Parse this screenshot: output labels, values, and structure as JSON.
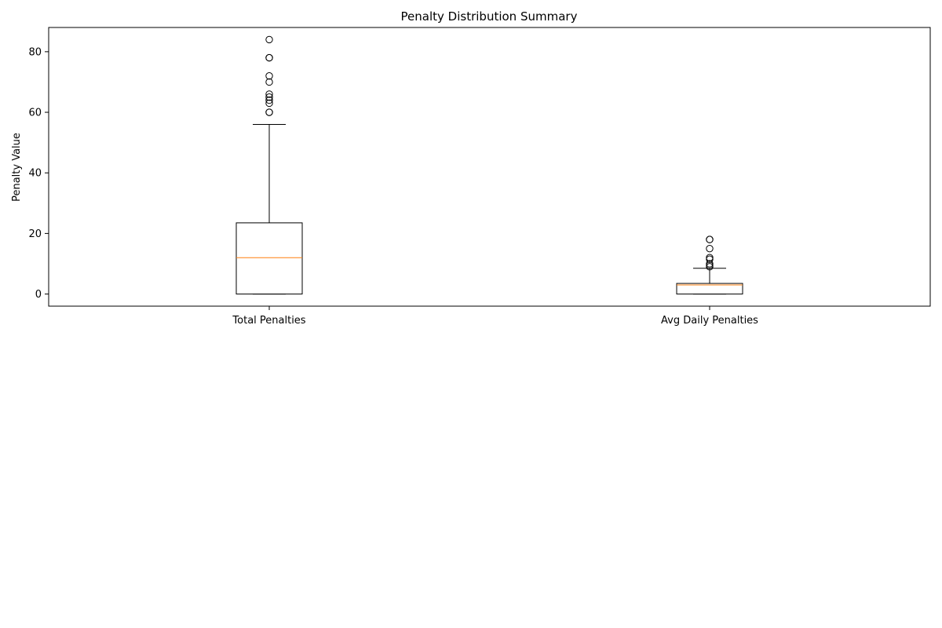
{
  "chart_data": {
    "type": "box",
    "title": "Penalty Distribution Summary",
    "xlabel": "",
    "ylabel": "Penalty Value",
    "ylim": [
      -4,
      88
    ],
    "yticks": [
      0,
      20,
      40,
      60,
      80
    ],
    "grid": false,
    "categories": [
      "Total Penalties",
      "Avg Daily Penalties"
    ],
    "boxes": [
      {
        "label": "Total Penalties",
        "whisker_low": 0,
        "q1": 0,
        "median": 12,
        "q3": 23.5,
        "whisker_high": 56,
        "outliers": [
          60,
          60,
          63,
          64,
          65,
          66,
          70,
          72,
          78,
          78,
          84
        ]
      },
      {
        "label": "Avg Daily Penalties",
        "whisker_low": 0,
        "q1": 0,
        "median": 3,
        "q3": 3.5,
        "whisker_high": 8.5,
        "outliers": [
          9,
          9.5,
          10,
          11.5,
          12,
          15,
          18,
          18
        ]
      }
    ],
    "colors": {
      "box": "#000000",
      "median": "#ff7f0e",
      "whisker": "#000000",
      "outlier": "#000000"
    }
  }
}
